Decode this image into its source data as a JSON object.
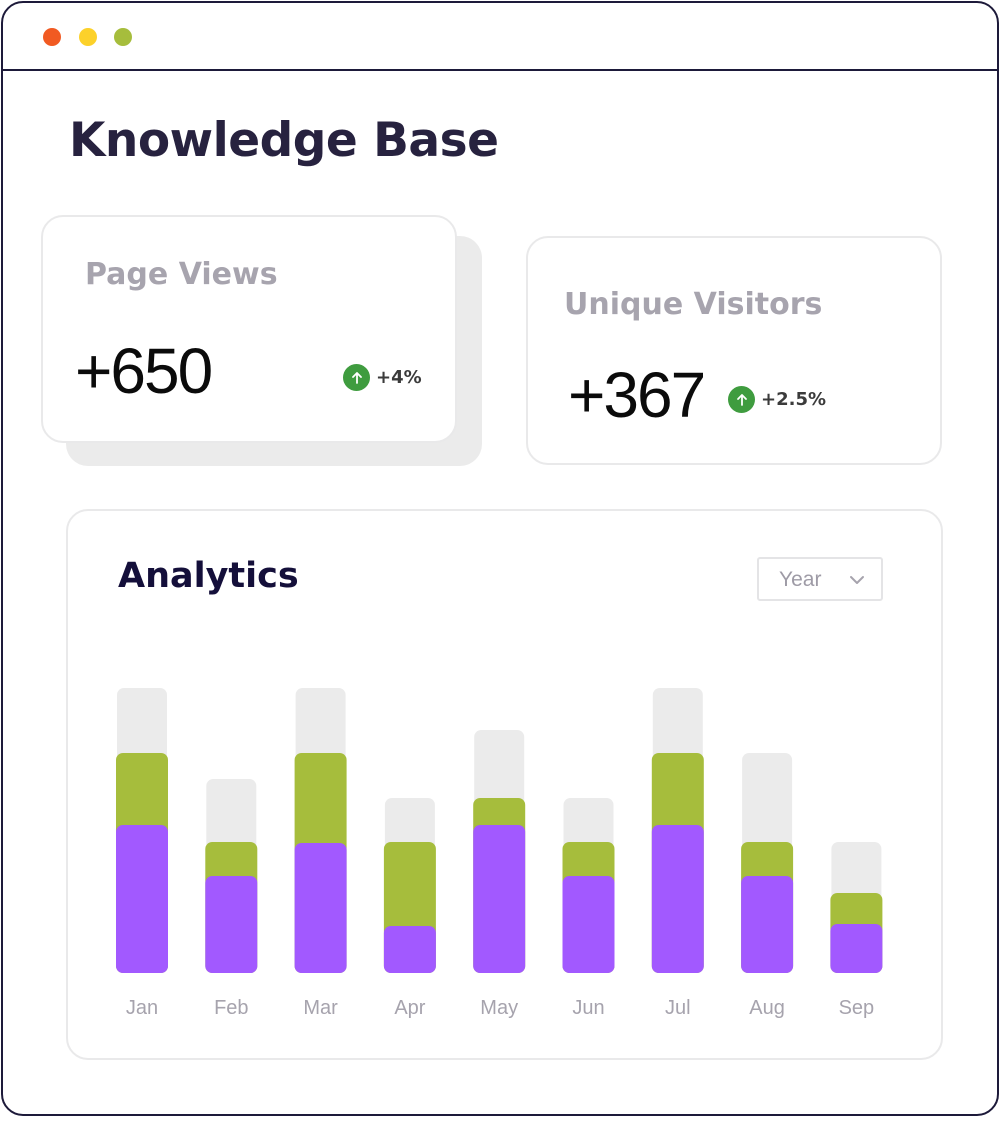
{
  "window": {
    "controls": [
      "close",
      "minimize",
      "maximize"
    ],
    "colors": {
      "close": "#f15a22",
      "minimize": "#fcd12a",
      "maximize": "#a6bd3c"
    }
  },
  "page": {
    "title": "Knowledge Base"
  },
  "stats": {
    "page_views": {
      "label": "Page Views",
      "value": "+650",
      "change": "+4%",
      "icon": "arrow-up-icon"
    },
    "unique_visitors": {
      "label": "Unique Visitors",
      "value": "+367",
      "change": "+2.5%",
      "icon": "arrow-up-icon"
    }
  },
  "analytics": {
    "title": "Analytics",
    "period_select": {
      "selected": "Year",
      "icon": "chevron-down-icon"
    }
  },
  "colors": {
    "track": "#ebebeb",
    "secondary": "#a6bd3c",
    "primary": "#a259ff",
    "positive": "#3f9c3f"
  },
  "chart_data": {
    "type": "bar",
    "stacked": true,
    "categories": [
      "Jan",
      "Feb",
      "Mar",
      "Apr",
      "May",
      "Jun",
      "Jul",
      "Aug",
      "Sep"
    ],
    "series": [
      {
        "color": "#a259ff",
        "values": [
          148,
          97,
          130,
          47,
          148,
          97,
          148,
          97,
          49
        ]
      },
      {
        "color": "#a6bd3c",
        "values": [
          72,
          34,
          90,
          84,
          27,
          34,
          72,
          34,
          31
        ]
      },
      {
        "color": "#ebebeb",
        "values": [
          65,
          63,
          65,
          44,
          68,
          44,
          65,
          89,
          51
        ]
      }
    ],
    "ylim": [
      0,
      300
    ],
    "grid": false,
    "legend": "none",
    "title": "",
    "xlabel": "",
    "ylabel": ""
  }
}
